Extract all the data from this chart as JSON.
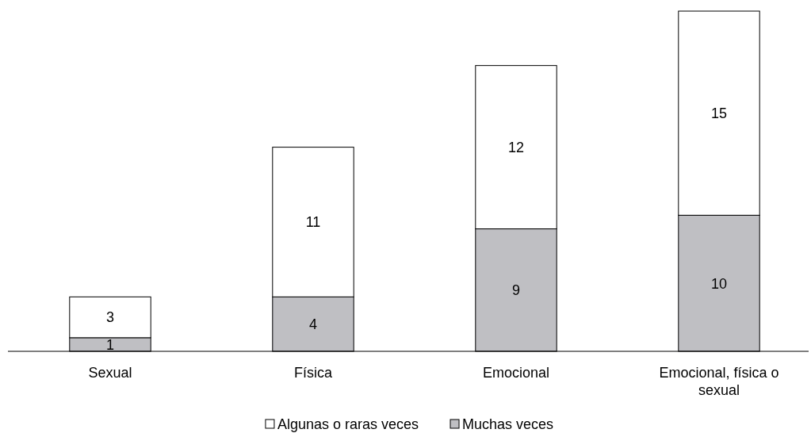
{
  "chart_data": {
    "type": "bar",
    "stacked": true,
    "data_labels": true,
    "legend": "bottom",
    "categories": [
      "Sexual",
      "Física",
      "Emocional",
      "Emocional, física o sexual"
    ],
    "series": [
      {
        "name": "Muchas veces",
        "color": "#bfbfc3",
        "values": [
          1,
          4,
          9,
          10
        ]
      },
      {
        "name": "Algunas o raras veces",
        "color": "#ffffff",
        "values": [
          3,
          11,
          12,
          15
        ]
      }
    ]
  }
}
